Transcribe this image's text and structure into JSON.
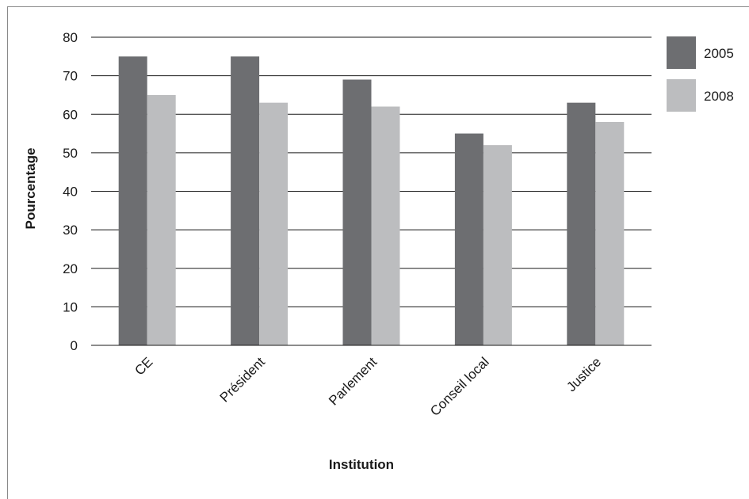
{
  "chart_data": {
    "type": "bar",
    "title": "",
    "xlabel": "Institution",
    "ylabel": "Pourcentage",
    "ylim": [
      0,
      80
    ],
    "yticks": [
      "0",
      "10",
      "20",
      "30",
      "40",
      "50",
      "60",
      "70",
      "80"
    ],
    "grid": true,
    "legend_position": "right",
    "categories": [
      "CE",
      "Président",
      "Parlement",
      "Conseil local",
      "Justice"
    ],
    "series": [
      {
        "name": "2005",
        "color": "#6d6e71",
        "values": [
          75,
          75,
          69,
          55,
          63
        ]
      },
      {
        "name": "2008",
        "color": "#bcbdbf",
        "values": [
          65,
          63,
          62,
          52,
          58
        ]
      }
    ]
  }
}
